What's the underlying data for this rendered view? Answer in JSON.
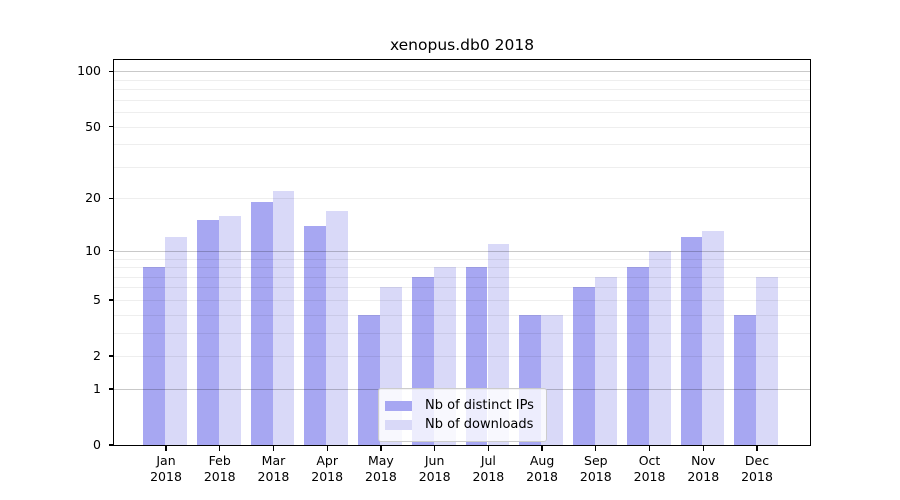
{
  "chart_data": {
    "type": "bar",
    "title": "xenopus.db0 2018",
    "categories": [
      "Jan",
      "Feb",
      "Mar",
      "Apr",
      "May",
      "Jun",
      "Jul",
      "Aug",
      "Sep",
      "Oct",
      "Nov",
      "Dec"
    ],
    "year": "2018",
    "series": [
      {
        "name": "Nb of distinct IPs",
        "color": "#a7a7f2",
        "values": [
          8,
          15,
          19,
          14,
          4,
          7,
          8,
          4,
          6,
          8,
          12,
          4
        ]
      },
      {
        "name": "Nb of downloads",
        "color": "#d9d9f8",
        "values": [
          12,
          16,
          22,
          17,
          6,
          8,
          11,
          4,
          7,
          10,
          13,
          7
        ]
      }
    ],
    "yscale": "log1p",
    "ylim": [
      0,
      115
    ],
    "yticks": [
      0,
      1,
      2,
      5,
      10,
      20,
      50,
      100
    ],
    "grid_major": [
      1,
      10,
      100
    ],
    "grid_minor": [
      2,
      3,
      4,
      5,
      6,
      7,
      8,
      9,
      20,
      30,
      40,
      50,
      60,
      70,
      80,
      90
    ],
    "legend_position": "lower center",
    "grid": "horizontal, drawn over bars",
    "axis_color": "#000000",
    "background_color": "#ffffff"
  }
}
